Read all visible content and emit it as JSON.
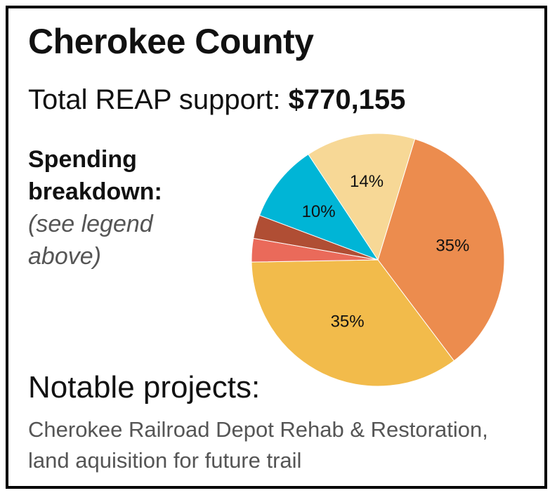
{
  "header": {
    "county": "Cherokee County",
    "total_label": "Total REAP support: ",
    "total_amount": "$770,155"
  },
  "breakdown": {
    "label_line1": "Spending",
    "label_line2": "breakdown:",
    "note": "(see legend above)"
  },
  "projects": {
    "heading": "Notable projects:",
    "text": "Cherokee Railroad Depot Rehab & Restoration, land aquisition for future trail"
  },
  "chart_data": {
    "type": "pie",
    "slices": [
      {
        "value": 35,
        "label": "35%",
        "color": "#ec8c4e"
      },
      {
        "value": 35,
        "label": "35%",
        "color": "#f2bb4b"
      },
      {
        "value": 3,
        "label": "3%",
        "color": "#ea6a5a"
      },
      {
        "value": 3,
        "label": "3%",
        "color": "#b04e34"
      },
      {
        "value": 10,
        "label": "10%",
        "color": "#00b5d6"
      },
      {
        "value": 14,
        "label": "14%",
        "color": "#f7d896"
      }
    ],
    "start_angle_deg": 17
  }
}
